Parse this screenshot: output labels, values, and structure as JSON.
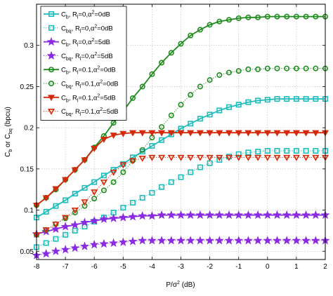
{
  "chart_data": {
    "type": "line",
    "title": "",
    "xlabel": "P/σ² (dB)",
    "ylabel": "C_b or C_bq (bpcu)",
    "xlim": [
      -8,
      2
    ],
    "ylim": [
      0.04,
      0.35
    ],
    "xticks": [
      "-8",
      "-7",
      "-6",
      "-5",
      "-4",
      "-3",
      "-2",
      "-1",
      "0",
      "1",
      "2"
    ],
    "yticks": [
      "0.05",
      "0.1",
      "0.15",
      "0.2",
      "0.25",
      "0.3"
    ],
    "grid": true,
    "legend_position": "top-left",
    "x": [
      -8,
      -7.667,
      -7.333,
      -7,
      -6.667,
      -6.333,
      -6,
      -5.667,
      -5.333,
      -5,
      -4.667,
      -4.333,
      -4,
      -3.667,
      -3.333,
      -3,
      -2.667,
      -2.333,
      -2,
      -1.667,
      -1.333,
      -1,
      -0.667,
      -0.333,
      0,
      0.333,
      0.667,
      1,
      1.333,
      1.667,
      2
    ],
    "series": [
      {
        "name": "Cb, Rl=0, α²=0dB",
        "legend": {
          "main": "C",
          "sub1": "b",
          "mid": ", R",
          "sub2": "l",
          "tail": "=0,α",
          "sup": "2",
          "end": "=0dB"
        },
        "color": "#1fbcbc",
        "line": "solid",
        "marker": "square",
        "filled": false,
        "values": [
          0.091,
          0.098,
          0.105,
          0.112,
          0.12,
          0.127,
          0.134,
          0.142,
          0.149,
          0.156,
          0.164,
          0.171,
          0.178,
          0.185,
          0.192,
          0.199,
          0.205,
          0.211,
          0.216,
          0.221,
          0.225,
          0.228,
          0.231,
          0.233,
          0.234,
          0.235,
          0.235,
          0.235,
          0.235,
          0.235,
          0.235
        ]
      },
      {
        "name": "Cbq, Rl=0, α²=0dB",
        "legend": {
          "main": "C",
          "sub1": "bq",
          "mid": ", R",
          "sub2": "l",
          "tail": "=0,α",
          "sup": "2",
          "end": "=0dB"
        },
        "color": "#1fbcbc",
        "line": "dotted",
        "marker": "square",
        "filled": false,
        "values": [
          0.055,
          0.06,
          0.065,
          0.07,
          0.075,
          0.08,
          0.086,
          0.091,
          0.097,
          0.103,
          0.109,
          0.115,
          0.121,
          0.128,
          0.134,
          0.14,
          0.146,
          0.152,
          0.157,
          0.161,
          0.165,
          0.168,
          0.17,
          0.171,
          0.172,
          0.172,
          0.172,
          0.172,
          0.172,
          0.172,
          0.172
        ]
      },
      {
        "name": "Cb, Rl=0, α²=5dB",
        "legend": {
          "main": "C",
          "sub1": "b",
          "mid": ", R",
          "sub2": "l",
          "tail": "=0,α",
          "sup": "2",
          "end": "=5dB"
        },
        "color": "#8a2be2",
        "line": "solid",
        "marker": "star",
        "filled": true,
        "values": [
          0.071,
          0.074,
          0.077,
          0.08,
          0.082,
          0.085,
          0.087,
          0.089,
          0.09,
          0.091,
          0.092,
          0.093,
          0.093,
          0.094,
          0.094,
          0.094,
          0.094,
          0.094,
          0.094,
          0.094,
          0.094,
          0.094,
          0.094,
          0.094,
          0.094,
          0.094,
          0.094,
          0.094,
          0.094,
          0.094,
          0.094
        ]
      },
      {
        "name": "Cbq, Rl=0, α²=5dB",
        "legend": {
          "main": "C",
          "sub1": "bq",
          "mid": ", R",
          "sub2": "l",
          "tail": "=0,α",
          "sup": "2",
          "end": "=5dB"
        },
        "color": "#8a2be2",
        "line": "dotted",
        "marker": "star",
        "filled": true,
        "values": [
          0.045,
          0.047,
          0.05,
          0.052,
          0.054,
          0.056,
          0.058,
          0.059,
          0.06,
          0.061,
          0.062,
          0.063,
          0.063,
          0.063,
          0.063,
          0.063,
          0.063,
          0.063,
          0.063,
          0.063,
          0.063,
          0.063,
          0.063,
          0.063,
          0.063,
          0.063,
          0.063,
          0.063,
          0.063,
          0.063,
          0.063
        ]
      },
      {
        "name": "Cb, Rl=0.1, α²=0dB",
        "legend": {
          "main": "C",
          "sub1": "b",
          "mid": ", R",
          "sub2": "l",
          "tail": "=0.1,α",
          "sup": "2",
          "end": "=0dB"
        },
        "color": "#1e8c1e",
        "line": "solid",
        "marker": "circle",
        "filled": false,
        "values": [
          0.106,
          0.115,
          0.125,
          0.137,
          0.149,
          0.161,
          0.176,
          0.19,
          0.206,
          0.22,
          0.236,
          0.25,
          0.265,
          0.279,
          0.291,
          0.302,
          0.312,
          0.319,
          0.325,
          0.329,
          0.331,
          0.333,
          0.334,
          0.334,
          0.335,
          0.335,
          0.335,
          0.335,
          0.335,
          0.335,
          0.335
        ]
      },
      {
        "name": "Cbq, Rl=0.1, α²=0dB",
        "legend": {
          "main": "C",
          "sub1": "bq",
          "mid": ", R",
          "sub2": "l",
          "tail": "=0.1,α",
          "sup": "2",
          "end": "=0dB"
        },
        "color": "#1e8c1e",
        "line": "dotted",
        "marker": "circle",
        "filled": false,
        "values": [
          0.07,
          0.076,
          0.083,
          0.09,
          0.097,
          0.105,
          0.114,
          0.124,
          0.134,
          0.146,
          0.16,
          0.173,
          0.188,
          0.201,
          0.215,
          0.228,
          0.24,
          0.25,
          0.258,
          0.264,
          0.267,
          0.269,
          0.271,
          0.271,
          0.272,
          0.272,
          0.272,
          0.272,
          0.272,
          0.272,
          0.272
        ]
      },
      {
        "name": "Cb, Rl=0.1, α²=5dB",
        "legend": {
          "main": "C",
          "sub1": "b",
          "mid": ", R",
          "sub2": "l",
          "tail": "=0.1,α",
          "sup": "2",
          "end": "=5dB"
        },
        "color": "#d42a0a",
        "line": "solid",
        "marker": "triangle-down",
        "filled": true,
        "values": [
          0.106,
          0.115,
          0.126,
          0.137,
          0.149,
          0.161,
          0.175,
          0.186,
          0.191,
          0.193,
          0.194,
          0.194,
          0.194,
          0.194,
          0.194,
          0.194,
          0.194,
          0.194,
          0.194,
          0.194,
          0.194,
          0.194,
          0.194,
          0.194,
          0.194,
          0.194,
          0.194,
          0.194,
          0.194,
          0.194,
          0.194
        ]
      },
      {
        "name": "Cbq, Rl=0.1, α²=5dB",
        "legend": {
          "main": "C",
          "sub1": "bq",
          "mid": ", R",
          "sub2": "l",
          "tail": "=0.1,α",
          "sup": "2",
          "end": "=5dB"
        },
        "color": "#d42a0a",
        "line": "dotted",
        "marker": "triangle-down",
        "filled": false,
        "values": [
          0.07,
          0.076,
          0.083,
          0.091,
          0.1,
          0.11,
          0.122,
          0.134,
          0.146,
          0.155,
          0.16,
          0.163,
          0.164,
          0.164,
          0.164,
          0.164,
          0.164,
          0.164,
          0.164,
          0.164,
          0.164,
          0.164,
          0.164,
          0.164,
          0.164,
          0.164,
          0.164,
          0.164,
          0.164,
          0.164,
          0.164
        ]
      }
    ]
  }
}
